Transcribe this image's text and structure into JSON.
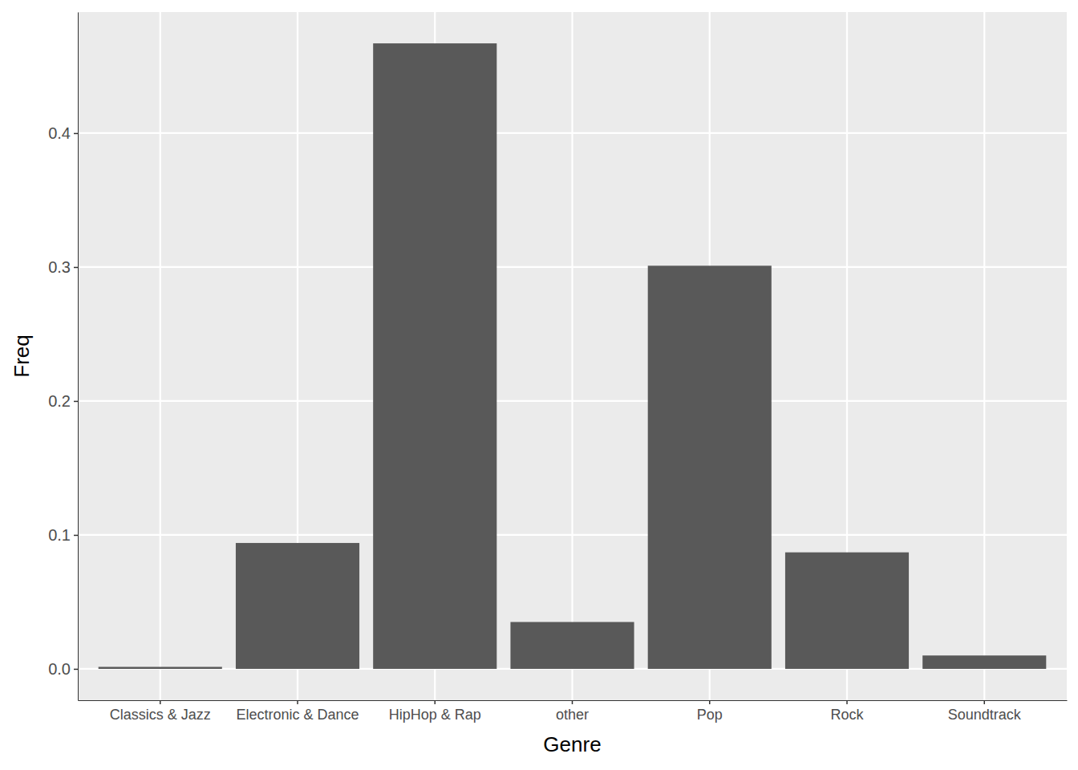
{
  "chart_data": {
    "type": "bar",
    "x_label": "Genre",
    "y_label": "Freq",
    "categories": [
      "Classics & Jazz",
      "Electronic & Dance",
      "HipHop & Rap",
      "other",
      "Pop",
      "Rock",
      "Soundtrack"
    ],
    "values": [
      0.0015,
      0.094,
      0.467,
      0.035,
      0.301,
      0.087,
      0.01
    ],
    "color": "#595959",
    "ylim": [
      -0.0234,
      0.4904
    ],
    "yticks": [
      {
        "value": 0,
        "label": "0.0"
      },
      0.1,
      0.2,
      0.3,
      0.4
    ],
    "grid": true
  }
}
